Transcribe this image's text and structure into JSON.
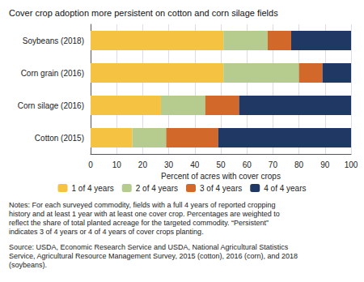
{
  "chart_data": {
    "type": "bar",
    "orientation": "horizontal",
    "stacked": true,
    "title": "Cover crop adoption more persistent on cotton and corn silage fields",
    "categories": [
      "Soybeans (2018)",
      "Corn grain (2016)",
      "Corn silage (2016)",
      "Cotton (2015)"
    ],
    "series": [
      {
        "name": "1 of 4 years",
        "color": "#F5C242",
        "values": [
          51,
          51,
          27,
          16
        ]
      },
      {
        "name": "2 of 4 years",
        "color": "#B5CC8E",
        "values": [
          17,
          29,
          17,
          13
        ]
      },
      {
        "name": "3 of 4 years",
        "color": "#D2692A",
        "values": [
          9,
          9,
          13,
          20
        ]
      },
      {
        "name": "4 of 4 years",
        "color": "#1F3864",
        "values": [
          23,
          11,
          43,
          51
        ]
      }
    ],
    "xlabel": "Percent of acres with cover crops",
    "xlim": [
      0,
      100
    ],
    "xticks": [
      0,
      10,
      20,
      30,
      40,
      50,
      60,
      70,
      80,
      90,
      100
    ],
    "grid": true,
    "legend": "bottom",
    "notes": "Notes: For each surveyed commodity, fields with a full 4 years of reported cropping history and at least 1 year with at least one cover crop. Percentages are weighted to reflect the share of total planted acreage for the targeted commodity. “Persistent” indicates 3 of 4 years or 4 of 4 years of cover crops planting.",
    "source": "Source: USDA, Economic Research Service and USDA, National Agricultural Statistics Service, Agricultural Resource Management Survey, 2015 (cotton), 2016 (corn), and 2018 (soybeans)."
  }
}
